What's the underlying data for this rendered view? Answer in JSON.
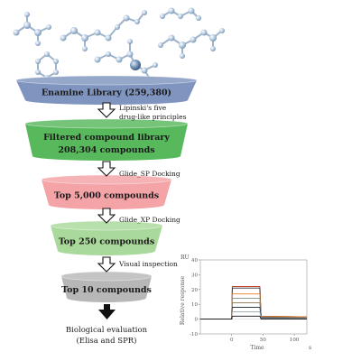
{
  "funnel": {
    "stages": [
      {
        "lines": [
          "Enamine Library (259,380)"
        ],
        "color": "#7f95bf"
      },
      {
        "lines": [
          "Filtered compound library",
          "208,304 compounds"
        ],
        "color": "#57b85c"
      },
      {
        "lines": [
          "Top 5,000 compounds"
        ],
        "color": "#f4a3a7"
      },
      {
        "lines": [
          "Top 250 compounds"
        ],
        "color": "#a9d99b"
      },
      {
        "lines": [
          "Top 10 compounds"
        ],
        "color": "#b7b7b7"
      }
    ],
    "steps": [
      {
        "lines": [
          "Lipinski's five",
          "drug-like principles"
        ]
      },
      {
        "lines": [
          "Glide_SP Docking"
        ]
      },
      {
        "lines": [
          "Glide_XP Docking"
        ]
      },
      {
        "lines": [
          "Visual inspection"
        ]
      }
    ],
    "final": {
      "lines": [
        "Biological evaluation",
        "(Elisa and SPR)"
      ]
    }
  },
  "chart_data": {
    "type": "line",
    "ylabel_unit": "RU",
    "ylabel": "Relative response",
    "xlabel": "Time",
    "x_unit": "s",
    "xlim": [
      -50,
      120
    ],
    "ylim": [
      -10,
      40
    ],
    "xticks": [
      0,
      50,
      100
    ],
    "yticks": [
      -10,
      0,
      10,
      20,
      30,
      40
    ],
    "series": [
      {
        "color": "#c0392b",
        "x": [
          -50,
          0,
          1,
          45,
          47,
          120
        ],
        "y": [
          0,
          0,
          22,
          22,
          2,
          1
        ]
      },
      {
        "color": "#333333",
        "x": [
          -50,
          0,
          1,
          45,
          47,
          120
        ],
        "y": [
          0,
          0,
          21,
          21,
          2,
          1.5
        ]
      },
      {
        "color": "#e67e22",
        "x": [
          -50,
          0,
          1,
          45,
          47,
          120
        ],
        "y": [
          0,
          0,
          17,
          17,
          2,
          1.5
        ]
      },
      {
        "color": "#7f8c8d",
        "x": [
          -50,
          0,
          1,
          45,
          47,
          120
        ],
        "y": [
          0,
          0,
          14,
          14,
          1.5,
          1
        ]
      },
      {
        "color": "#8e6e53",
        "x": [
          -50,
          0,
          1,
          45,
          47,
          120
        ],
        "y": [
          0,
          0,
          11,
          11,
          1.5,
          1
        ]
      },
      {
        "color": "#2c3e50",
        "x": [
          -50,
          0,
          1,
          45,
          47,
          120
        ],
        "y": [
          0,
          0,
          8,
          8,
          1,
          0.5
        ]
      },
      {
        "color": "#95a5a6",
        "x": [
          -50,
          0,
          1,
          45,
          47,
          120
        ],
        "y": [
          0,
          0,
          5,
          5,
          0.5,
          0.5
        ]
      },
      {
        "color": "#111111",
        "x": [
          -50,
          0,
          1,
          45,
          47,
          120
        ],
        "y": [
          0,
          0,
          2,
          2,
          0,
          0
        ]
      }
    ]
  }
}
